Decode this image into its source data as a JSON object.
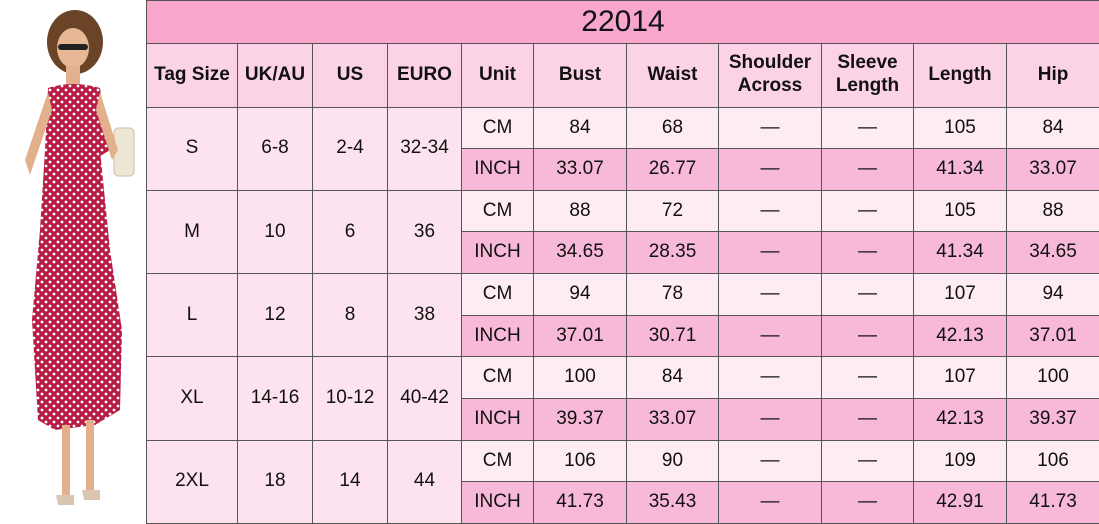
{
  "header": {
    "title": "22014"
  },
  "table": {
    "columns": [
      "Tag Size",
      "UK/AU",
      "US",
      "EURO",
      "Unit",
      "Bust",
      "Waist",
      "Shoulder Across",
      "Sleeve Length",
      "Length",
      "Hip"
    ],
    "groups": [
      {
        "size": [
          "S",
          "6-8",
          "2-4",
          "32-34"
        ],
        "rows": [
          [
            "CM",
            "84",
            "68",
            "—",
            "—",
            "105",
            "84"
          ],
          [
            "INCH",
            "33.07",
            "26.77",
            "—",
            "—",
            "41.34",
            "33.07"
          ]
        ]
      },
      {
        "size": [
          "M",
          "10",
          "6",
          "36"
        ],
        "rows": [
          [
            "CM",
            "88",
            "72",
            "—",
            "—",
            "105",
            "88"
          ],
          [
            "INCH",
            "34.65",
            "28.35",
            "—",
            "—",
            "41.34",
            "34.65"
          ]
        ]
      },
      {
        "size": [
          "L",
          "12",
          "8",
          "38"
        ],
        "rows": [
          [
            "CM",
            "94",
            "78",
            "—",
            "—",
            "107",
            "94"
          ],
          [
            "INCH",
            "37.01",
            "30.71",
            "—",
            "—",
            "42.13",
            "37.01"
          ]
        ]
      },
      {
        "size": [
          "XL",
          "14-16",
          "10-12",
          "40-42"
        ],
        "rows": [
          [
            "CM",
            "100",
            "84",
            "—",
            "—",
            "107",
            "100"
          ],
          [
            "INCH",
            "39.37",
            "33.07",
            "—",
            "—",
            "42.13",
            "39.37"
          ]
        ]
      },
      {
        "size": [
          "2XL",
          "18",
          "14",
          "44"
        ],
        "rows": [
          [
            "CM",
            "106",
            "90",
            "—",
            "—",
            "109",
            "106"
          ],
          [
            "INCH",
            "41.73",
            "35.43",
            "—",
            "—",
            "42.91",
            "41.73"
          ]
        ]
      }
    ]
  }
}
